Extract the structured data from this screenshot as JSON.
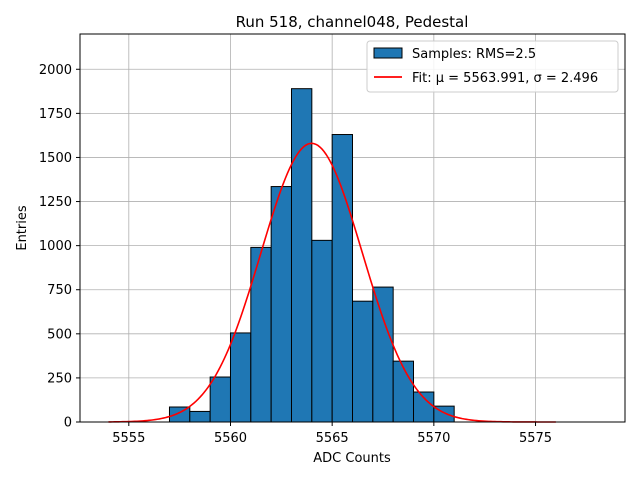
{
  "chart_data": {
    "type": "bar",
    "title": "Run 518, channel048, Pedestal",
    "xlabel": "ADC Counts",
    "ylabel": "Entries",
    "xlim": [
      5552.6,
      5579.4
    ],
    "ylim": [
      0,
      2200
    ],
    "x_ticks": [
      5555,
      5560,
      5565,
      5570,
      5575
    ],
    "y_ticks": [
      0,
      250,
      500,
      750,
      1000,
      1250,
      1500,
      1750,
      2000
    ],
    "grid": true,
    "legend_position": "top-right",
    "bar_color": "#1f77b4",
    "bar_edge_color": "#000000",
    "fit_color": "#ff0000",
    "histogram": {
      "name": "Samples: RMS=2.5",
      "bin_width": 1,
      "bin_left_edges": [
        5557,
        5558,
        5559,
        5560,
        5561,
        5562,
        5563,
        5564,
        5565,
        5566,
        5567,
        5568,
        5569,
        5570
      ],
      "counts": [
        85,
        60,
        255,
        505,
        990,
        1335,
        1890,
        1030,
        1630,
        685,
        765,
        345,
        170,
        90
      ]
    },
    "fit": {
      "name": "Fit: μ = 5563.991, σ = 2.496",
      "mu": 5563.991,
      "sigma": 2.496,
      "amplitude": 1580,
      "x_range": [
        5554,
        5576
      ]
    }
  }
}
